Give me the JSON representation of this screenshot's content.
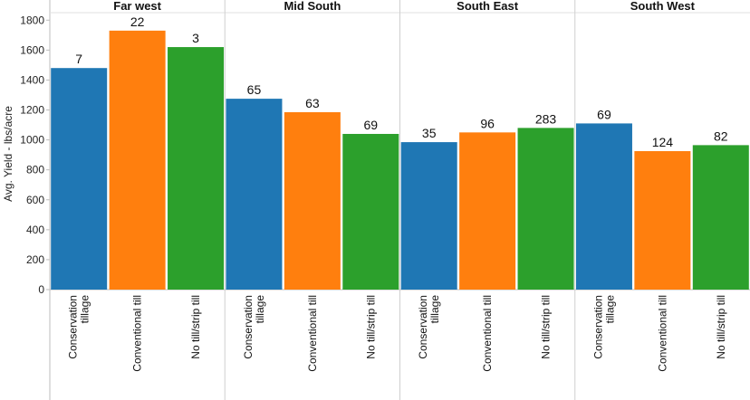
{
  "chart_data": {
    "type": "bar",
    "title": "",
    "xlabel": "",
    "ylabel": "Avg. Yield - lbs/acre",
    "ylim": [
      0,
      1850
    ],
    "yticks": [
      0,
      200,
      400,
      600,
      800,
      1000,
      1200,
      1400,
      1600,
      1800
    ],
    "grid": false,
    "legend": "none",
    "categories": [
      "Conservation tillage",
      "Conventional till",
      "No till/strip till"
    ],
    "category_label_lines": [
      [
        "Conservation",
        "tillage"
      ],
      [
        "Conventional till"
      ],
      [
        "No till/strip till"
      ]
    ],
    "colors": {
      "Conservation tillage": "#1f77b4",
      "Conventional till": "#ff7f0e",
      "No till/strip till": "#2ca02c"
    },
    "panels": [
      {
        "name": "Far west",
        "values": [
          1480,
          1730,
          1620
        ],
        "labels": [
          "7",
          "22",
          "3"
        ]
      },
      {
        "name": "Mid South",
        "values": [
          1275,
          1185,
          1040
        ],
        "labels": [
          "65",
          "63",
          "69"
        ]
      },
      {
        "name": "South East",
        "values": [
          985,
          1050,
          1080
        ],
        "labels": [
          "35",
          "96",
          "283"
        ]
      },
      {
        "name": "South West",
        "values": [
          1110,
          925,
          965
        ],
        "labels": [
          "69",
          "124",
          "82"
        ]
      }
    ]
  }
}
